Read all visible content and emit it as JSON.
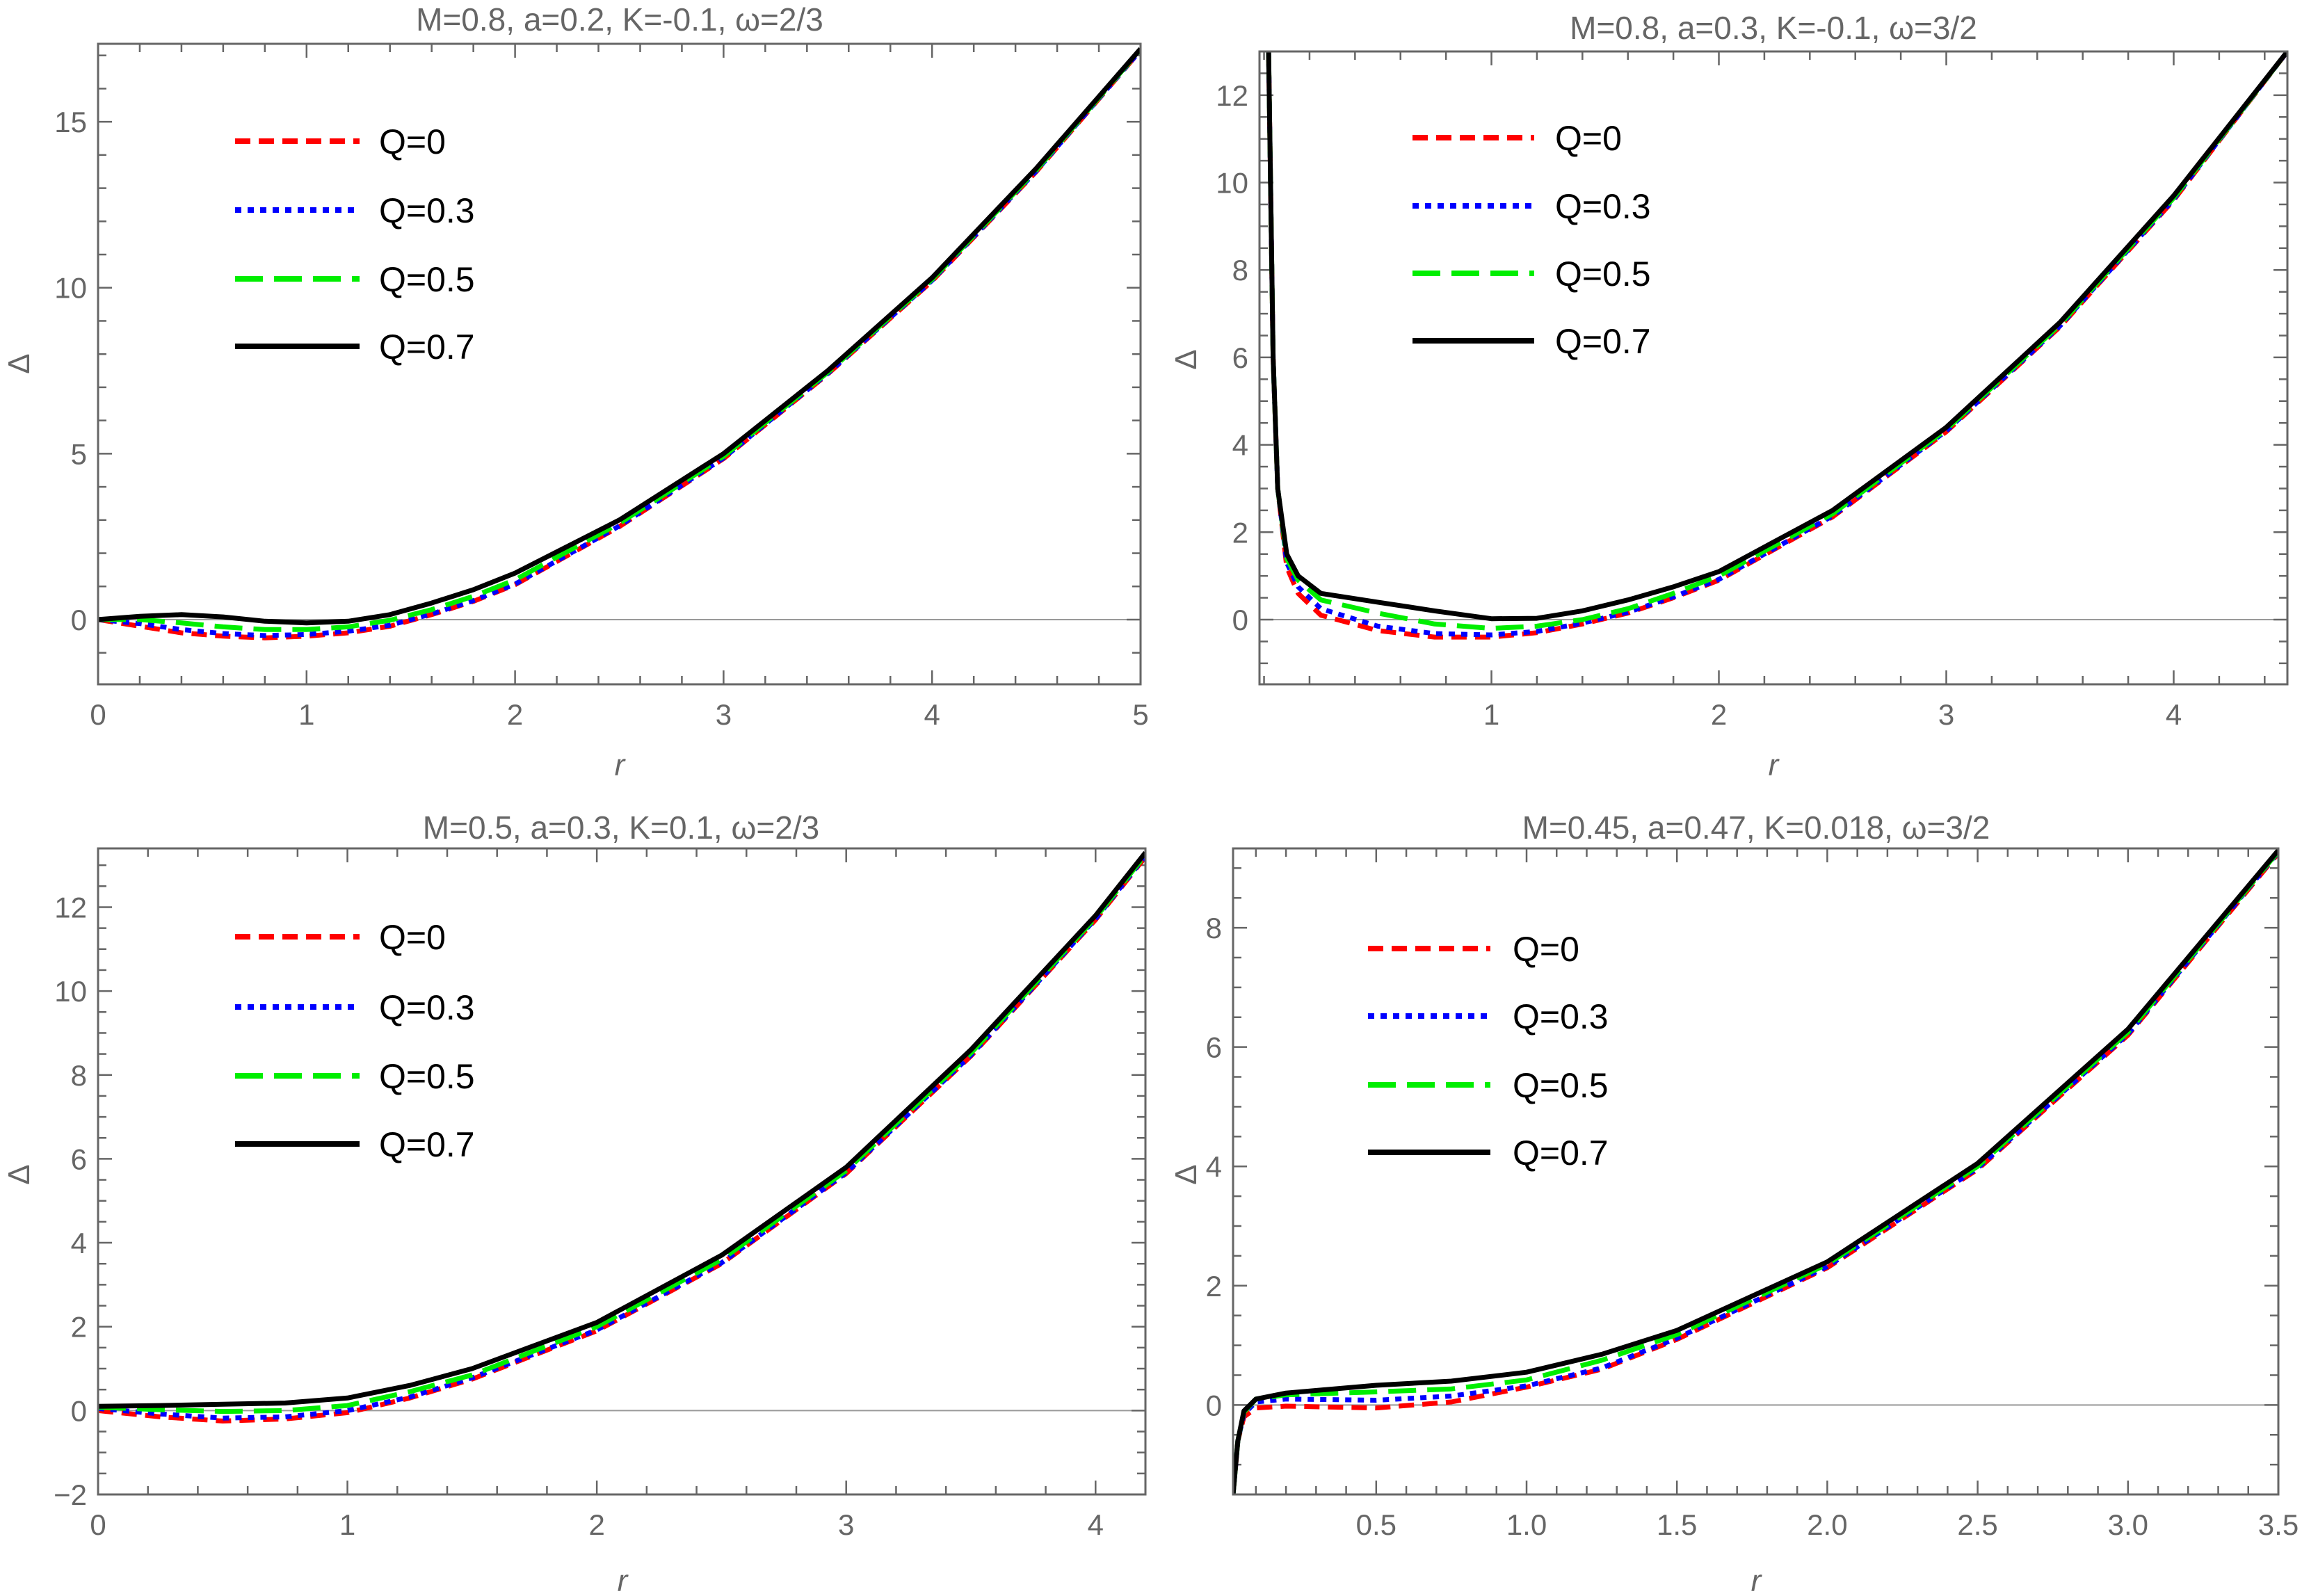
{
  "chart_data": [
    {
      "type": "line",
      "title": "M=0.8, a=0.2, K=-0.1, ω=2/3",
      "xlabel": "r",
      "ylabel": "Δ",
      "xlim": [
        0,
        5
      ],
      "ylim": [
        -1.95,
        17.35
      ],
      "xticks": [
        0,
        1,
        2,
        3,
        4,
        5
      ],
      "xtick_labels": [
        "0",
        "1",
        "2",
        "3",
        "4",
        "5"
      ],
      "yticks": [
        0,
        5,
        10,
        15
      ],
      "ytick_labels": [
        "0",
        "5",
        "10",
        "15"
      ],
      "xminor": 0.2,
      "yminor": 1,
      "zero_line": true,
      "legend_position": "upper-left",
      "series": [
        {
          "name": "Q=0",
          "color": "#ff0000",
          "style": "dashed",
          "x": [
            0,
            0.2,
            0.4,
            0.6,
            0.8,
            1.0,
            1.2,
            1.4,
            1.6,
            1.8,
            2.0,
            2.5,
            3.0,
            3.5,
            4.0,
            4.5,
            5.0
          ],
          "y": [
            0,
            -0.2,
            -0.4,
            -0.5,
            -0.55,
            -0.5,
            -0.4,
            -0.2,
            0.15,
            0.55,
            1.05,
            2.8,
            4.85,
            7.4,
            10.2,
            13.5,
            17.15
          ]
        },
        {
          "name": "Q=0.3",
          "color": "#0000ff",
          "style": "dotted",
          "x": [
            0,
            0.2,
            0.4,
            0.6,
            0.8,
            1.0,
            1.2,
            1.4,
            1.6,
            1.8,
            2.0,
            2.5,
            3.0,
            3.5,
            4.0,
            4.5,
            5.0
          ],
          "y": [
            0,
            -0.12,
            -0.3,
            -0.42,
            -0.48,
            -0.45,
            -0.35,
            -0.17,
            0.17,
            0.57,
            1.07,
            2.82,
            4.87,
            7.42,
            10.22,
            13.52,
            17.16
          ]
        },
        {
          "name": "Q=0.5",
          "color": "#00ee00",
          "style": "longdash",
          "x": [
            0,
            0.2,
            0.4,
            0.6,
            0.8,
            1.0,
            1.2,
            1.4,
            1.6,
            1.8,
            2.0,
            2.5,
            3.0,
            3.5,
            4.0,
            4.5,
            5.0
          ],
          "y": [
            0,
            0,
            -0.1,
            -0.22,
            -0.3,
            -0.3,
            -0.22,
            -0.02,
            0.3,
            0.7,
            1.2,
            2.9,
            4.92,
            7.45,
            10.25,
            13.55,
            17.18
          ]
        },
        {
          "name": "Q=0.7",
          "color": "#000000",
          "style": "solid",
          "x": [
            0,
            0.2,
            0.4,
            0.6,
            0.8,
            1.0,
            1.2,
            1.4,
            1.6,
            1.8,
            2.0,
            2.5,
            3.0,
            3.5,
            4.0,
            4.5,
            5.0
          ],
          "y": [
            0,
            0.1,
            0.15,
            0.08,
            -0.05,
            -0.1,
            -0.05,
            0.15,
            0.5,
            0.9,
            1.4,
            3.0,
            5.0,
            7.5,
            10.3,
            13.6,
            17.2
          ]
        }
      ]
    },
    {
      "type": "line",
      "title": "M=0.8, a=0.3, K=-0.1, ω=3/2",
      "xlabel": "r",
      "ylabel": "Δ",
      "xlim": [
        -0.02,
        4.5
      ],
      "ylim": [
        -1.48,
        13.0
      ],
      "xticks": [
        1,
        2,
        3,
        4
      ],
      "xtick_labels": [
        "1",
        "2",
        "3",
        "4"
      ],
      "yticks": [
        0,
        2,
        4,
        6,
        8,
        10,
        12
      ],
      "ytick_labels": [
        "0",
        "2",
        "4",
        "6",
        "8",
        "10",
        "12"
      ],
      "xminor": 0.2,
      "yminor": 0.5,
      "zero_line": true,
      "legend_position": "upper-left",
      "series": [
        {
          "name": "Q=0",
          "color": "#ff0000",
          "style": "dashed",
          "x": [
            0.02,
            0.04,
            0.06,
            0.1,
            0.15,
            0.25,
            0.5,
            0.75,
            1.0,
            1.2,
            1.4,
            1.6,
            1.8,
            2.0,
            2.5,
            3.0,
            3.5,
            4.0,
            4.5
          ],
          "y": [
            13,
            6,
            3,
            1.2,
            0.6,
            0.1,
            -0.25,
            -0.4,
            -0.4,
            -0.3,
            -0.1,
            0.15,
            0.5,
            0.9,
            2.35,
            4.3,
            6.7,
            9.6,
            13
          ]
        },
        {
          "name": "Q=0.3",
          "color": "#0000ff",
          "style": "dotted",
          "x": [
            0.02,
            0.04,
            0.06,
            0.1,
            0.15,
            0.25,
            0.5,
            0.75,
            1.0,
            1.2,
            1.4,
            1.6,
            1.8,
            2.0,
            2.5,
            3.0,
            3.5,
            4.0,
            4.5
          ],
          "y": [
            13,
            6,
            3,
            1.3,
            0.75,
            0.25,
            -0.15,
            -0.32,
            -0.35,
            -0.27,
            -0.08,
            0.17,
            0.52,
            0.92,
            2.37,
            4.32,
            6.72,
            9.62,
            13
          ]
        },
        {
          "name": "Q=0.5",
          "color": "#00ee00",
          "style": "longdash",
          "x": [
            0.02,
            0.04,
            0.06,
            0.1,
            0.15,
            0.25,
            0.5,
            0.75,
            1.0,
            1.2,
            1.4,
            1.6,
            1.8,
            2.0,
            2.5,
            3.0,
            3.5,
            4.0,
            4.5
          ],
          "y": [
            13,
            6,
            3,
            1.4,
            0.9,
            0.45,
            0.15,
            -0.1,
            -0.2,
            -0.15,
            0.0,
            0.25,
            0.6,
            1.0,
            2.42,
            4.35,
            6.75,
            9.65,
            13
          ]
        },
        {
          "name": "Q=0.7",
          "color": "#000000",
          "style": "solid",
          "x": [
            0.02,
            0.04,
            0.06,
            0.1,
            0.15,
            0.25,
            0.5,
            0.75,
            1.0,
            1.2,
            1.4,
            1.6,
            1.8,
            2.0,
            2.5,
            3.0,
            3.5,
            4.0,
            4.5
          ],
          "y": [
            13,
            6,
            3,
            1.5,
            1.0,
            0.6,
            0.4,
            0.2,
            0.02,
            0.03,
            0.2,
            0.45,
            0.75,
            1.1,
            2.5,
            4.4,
            6.8,
            9.7,
            13
          ]
        }
      ]
    },
    {
      "type": "line",
      "title": "M=0.5, a=0.3, K=0.1, ω=2/3",
      "xlabel": "r",
      "ylabel": "Δ",
      "xlim": [
        0,
        4.2
      ],
      "ylim": [
        -2,
        13.4
      ],
      "xticks": [
        0,
        1,
        2,
        3,
        4
      ],
      "xtick_labels": [
        "0",
        "1",
        "2",
        "3",
        "4"
      ],
      "yticks": [
        -2,
        0,
        2,
        4,
        6,
        8,
        10,
        12
      ],
      "ytick_labels": [
        "−2",
        "0",
        "2",
        "4",
        "6",
        "8",
        "10",
        "12"
      ],
      "xminor": 0.2,
      "yminor": 0.5,
      "zero_line": true,
      "legend_position": "upper-left",
      "series": [
        {
          "name": "Q=0",
          "color": "#ff0000",
          "style": "dashed",
          "x": [
            0,
            0.25,
            0.5,
            0.75,
            1.0,
            1.25,
            1.5,
            2.0,
            2.5,
            3.0,
            3.5,
            4.0,
            4.2
          ],
          "y": [
            0,
            -0.15,
            -0.25,
            -0.2,
            -0.05,
            0.3,
            0.75,
            1.9,
            3.5,
            5.65,
            8.45,
            11.7,
            13.2
          ]
        },
        {
          "name": "Q=0.3",
          "color": "#0000ff",
          "style": "dotted",
          "x": [
            0,
            0.25,
            0.5,
            0.75,
            1.0,
            1.25,
            1.5,
            2.0,
            2.5,
            3.0,
            3.5,
            4.0,
            4.2
          ],
          "y": [
            0.05,
            -0.08,
            -0.18,
            -0.15,
            0.0,
            0.32,
            0.78,
            1.92,
            3.52,
            5.67,
            8.47,
            11.72,
            13.22
          ]
        },
        {
          "name": "Q=0.5",
          "color": "#00ee00",
          "style": "longdash",
          "x": [
            0,
            0.25,
            0.5,
            0.75,
            1.0,
            1.25,
            1.5,
            2.0,
            2.5,
            3.0,
            3.5,
            4.0,
            4.2
          ],
          "y": [
            0.08,
            0.02,
            -0.02,
            0.0,
            0.12,
            0.45,
            0.85,
            2.0,
            3.6,
            5.72,
            8.52,
            11.75,
            13.25
          ]
        },
        {
          "name": "Q=0.7",
          "color": "#000000",
          "style": "solid",
          "x": [
            0,
            0.25,
            0.5,
            0.75,
            1.0,
            1.25,
            1.5,
            2.0,
            2.5,
            3.0,
            3.5,
            4.0,
            4.2
          ],
          "y": [
            0.1,
            0.12,
            0.15,
            0.18,
            0.3,
            0.6,
            1.0,
            2.1,
            3.7,
            5.8,
            8.6,
            11.8,
            13.3
          ]
        }
      ]
    },
    {
      "type": "line",
      "title": "M=0.45, a=0.47, K=0.018, ω=3/2",
      "xlabel": "r",
      "ylabel": "Δ",
      "xlim": [
        0.024,
        3.5
      ],
      "ylim": [
        -1.5,
        9.33
      ],
      "xticks": [
        0.5,
        1.0,
        1.5,
        2.0,
        2.5,
        3.0,
        3.5
      ],
      "xtick_labels": [
        "0.5",
        "1.0",
        "1.5",
        "2.0",
        "2.5",
        "3.0",
        "3.5"
      ],
      "yticks": [
        0,
        2,
        4,
        6,
        8
      ],
      "ytick_labels": [
        "0",
        "2",
        "4",
        "6",
        "8"
      ],
      "xminor": 0.1,
      "yminor": 0.5,
      "zero_line": true,
      "legend_position": "upper-left",
      "series": [
        {
          "name": "Q=0",
          "color": "#ff0000",
          "style": "dashed",
          "x": [
            0.024,
            0.04,
            0.06,
            0.1,
            0.2,
            0.5,
            0.75,
            1.0,
            1.25,
            1.5,
            2.0,
            2.5,
            3.0,
            3.5
          ],
          "y": [
            -1.5,
            -0.6,
            -0.2,
            -0.05,
            -0.02,
            -0.05,
            0.05,
            0.3,
            0.6,
            1.1,
            2.3,
            3.95,
            6.2,
            9.25
          ]
        },
        {
          "name": "Q=0.3",
          "color": "#0000ff",
          "style": "dotted",
          "x": [
            0.024,
            0.04,
            0.06,
            0.1,
            0.2,
            0.5,
            0.75,
            1.0,
            1.25,
            1.5,
            2.0,
            2.5,
            3.0,
            3.5
          ],
          "y": [
            -1.5,
            -0.6,
            -0.15,
            0.05,
            0.1,
            0.08,
            0.15,
            0.32,
            0.62,
            1.12,
            2.32,
            3.97,
            6.22,
            9.27
          ]
        },
        {
          "name": "Q=0.5",
          "color": "#00ee00",
          "style": "longdash",
          "x": [
            0.024,
            0.04,
            0.06,
            0.1,
            0.2,
            0.5,
            0.75,
            1.0,
            1.25,
            1.5,
            2.0,
            2.5,
            3.0,
            3.5
          ],
          "y": [
            -1.5,
            -0.6,
            -0.12,
            0.1,
            0.17,
            0.22,
            0.27,
            0.42,
            0.75,
            1.18,
            2.36,
            4.0,
            6.25,
            9.28
          ]
        },
        {
          "name": "Q=0.7",
          "color": "#000000",
          "style": "solid",
          "x": [
            0.024,
            0.04,
            0.06,
            0.1,
            0.2,
            0.5,
            0.75,
            1.0,
            1.25,
            1.5,
            2.0,
            2.5,
            3.0,
            3.5
          ],
          "y": [
            -1.5,
            -0.6,
            -0.1,
            0.1,
            0.2,
            0.33,
            0.4,
            0.55,
            0.85,
            1.25,
            2.4,
            4.05,
            6.3,
            9.3
          ]
        }
      ]
    }
  ]
}
